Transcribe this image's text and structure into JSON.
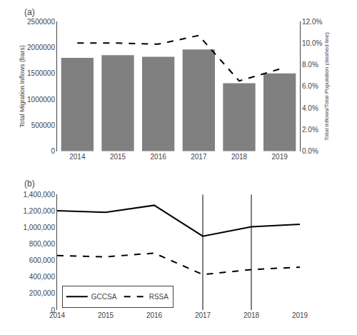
{
  "chart_data": [
    {
      "type": "bar",
      "title": "(a)",
      "categories": [
        "2014",
        "2015",
        "2016",
        "2017",
        "2018",
        "2019"
      ],
      "series": [
        {
          "type": "bar",
          "color": "#808080",
          "values": [
            1800000,
            1850000,
            1820000,
            1960000,
            1310000,
            1500000
          ]
        },
        {
          "type": "line",
          "axis": "y2",
          "color": "black",
          "line_style": "dashed",
          "values": [
            0.1,
            0.1,
            0.099,
            0.107,
            0.065,
            0.076
          ]
        }
      ],
      "ylabel": "Total Migration Inflows (bars)",
      "y2label": "Total Inflows/Total Population (dashed line)",
      "ylim": [
        0,
        2500000
      ],
      "yticks": [
        0,
        500000,
        1000000,
        1500000,
        2000000,
        2500000
      ],
      "y2lim": [
        0.0,
        0.12
      ],
      "y2ticks": [
        {
          "value": 0.0,
          "label": "0.0%"
        },
        {
          "value": 0.02,
          "label": "2.0%"
        },
        {
          "value": 0.04,
          "label": "4.0%"
        },
        {
          "value": 0.06,
          "label": "6.0%"
        },
        {
          "value": 0.08,
          "label": "8.0%"
        },
        {
          "value": 0.1,
          "label": "10.0%"
        },
        {
          "value": 0.12,
          "label": "12.0%"
        }
      ],
      "grid": false
    },
    {
      "type": "line",
      "title": "(b)",
      "categories": [
        "2014",
        "2015",
        "2016",
        "2017",
        "2018",
        "2019"
      ],
      "series": [
        {
          "name": "GCCSA",
          "color": "black",
          "line_style": "solid",
          "values": [
            1205000,
            1185000,
            1270000,
            895000,
            1010000,
            1040000
          ]
        },
        {
          "name": "RSSA",
          "color": "black",
          "line_style": "dashed",
          "values": [
            660000,
            645000,
            690000,
            430000,
            490000,
            520000
          ]
        }
      ],
      "ylim": [
        0,
        1400000
      ],
      "yticks": [
        0,
        {
          "value": 200000,
          "label": "200,000"
        },
        {
          "value": 400000,
          "label": "400,000"
        },
        {
          "value": 600000,
          "label": "600,000"
        },
        {
          "value": 800000,
          "label": "800,000"
        },
        {
          "value": 1000000,
          "label": "1,000,000"
        },
        {
          "value": 1200000,
          "label": "1,200,000"
        },
        {
          "value": 1400000,
          "label": "1,400,000"
        }
      ],
      "vlines": [
        "2017",
        "2018"
      ],
      "legend": "lower left",
      "grid": false
    }
  ]
}
